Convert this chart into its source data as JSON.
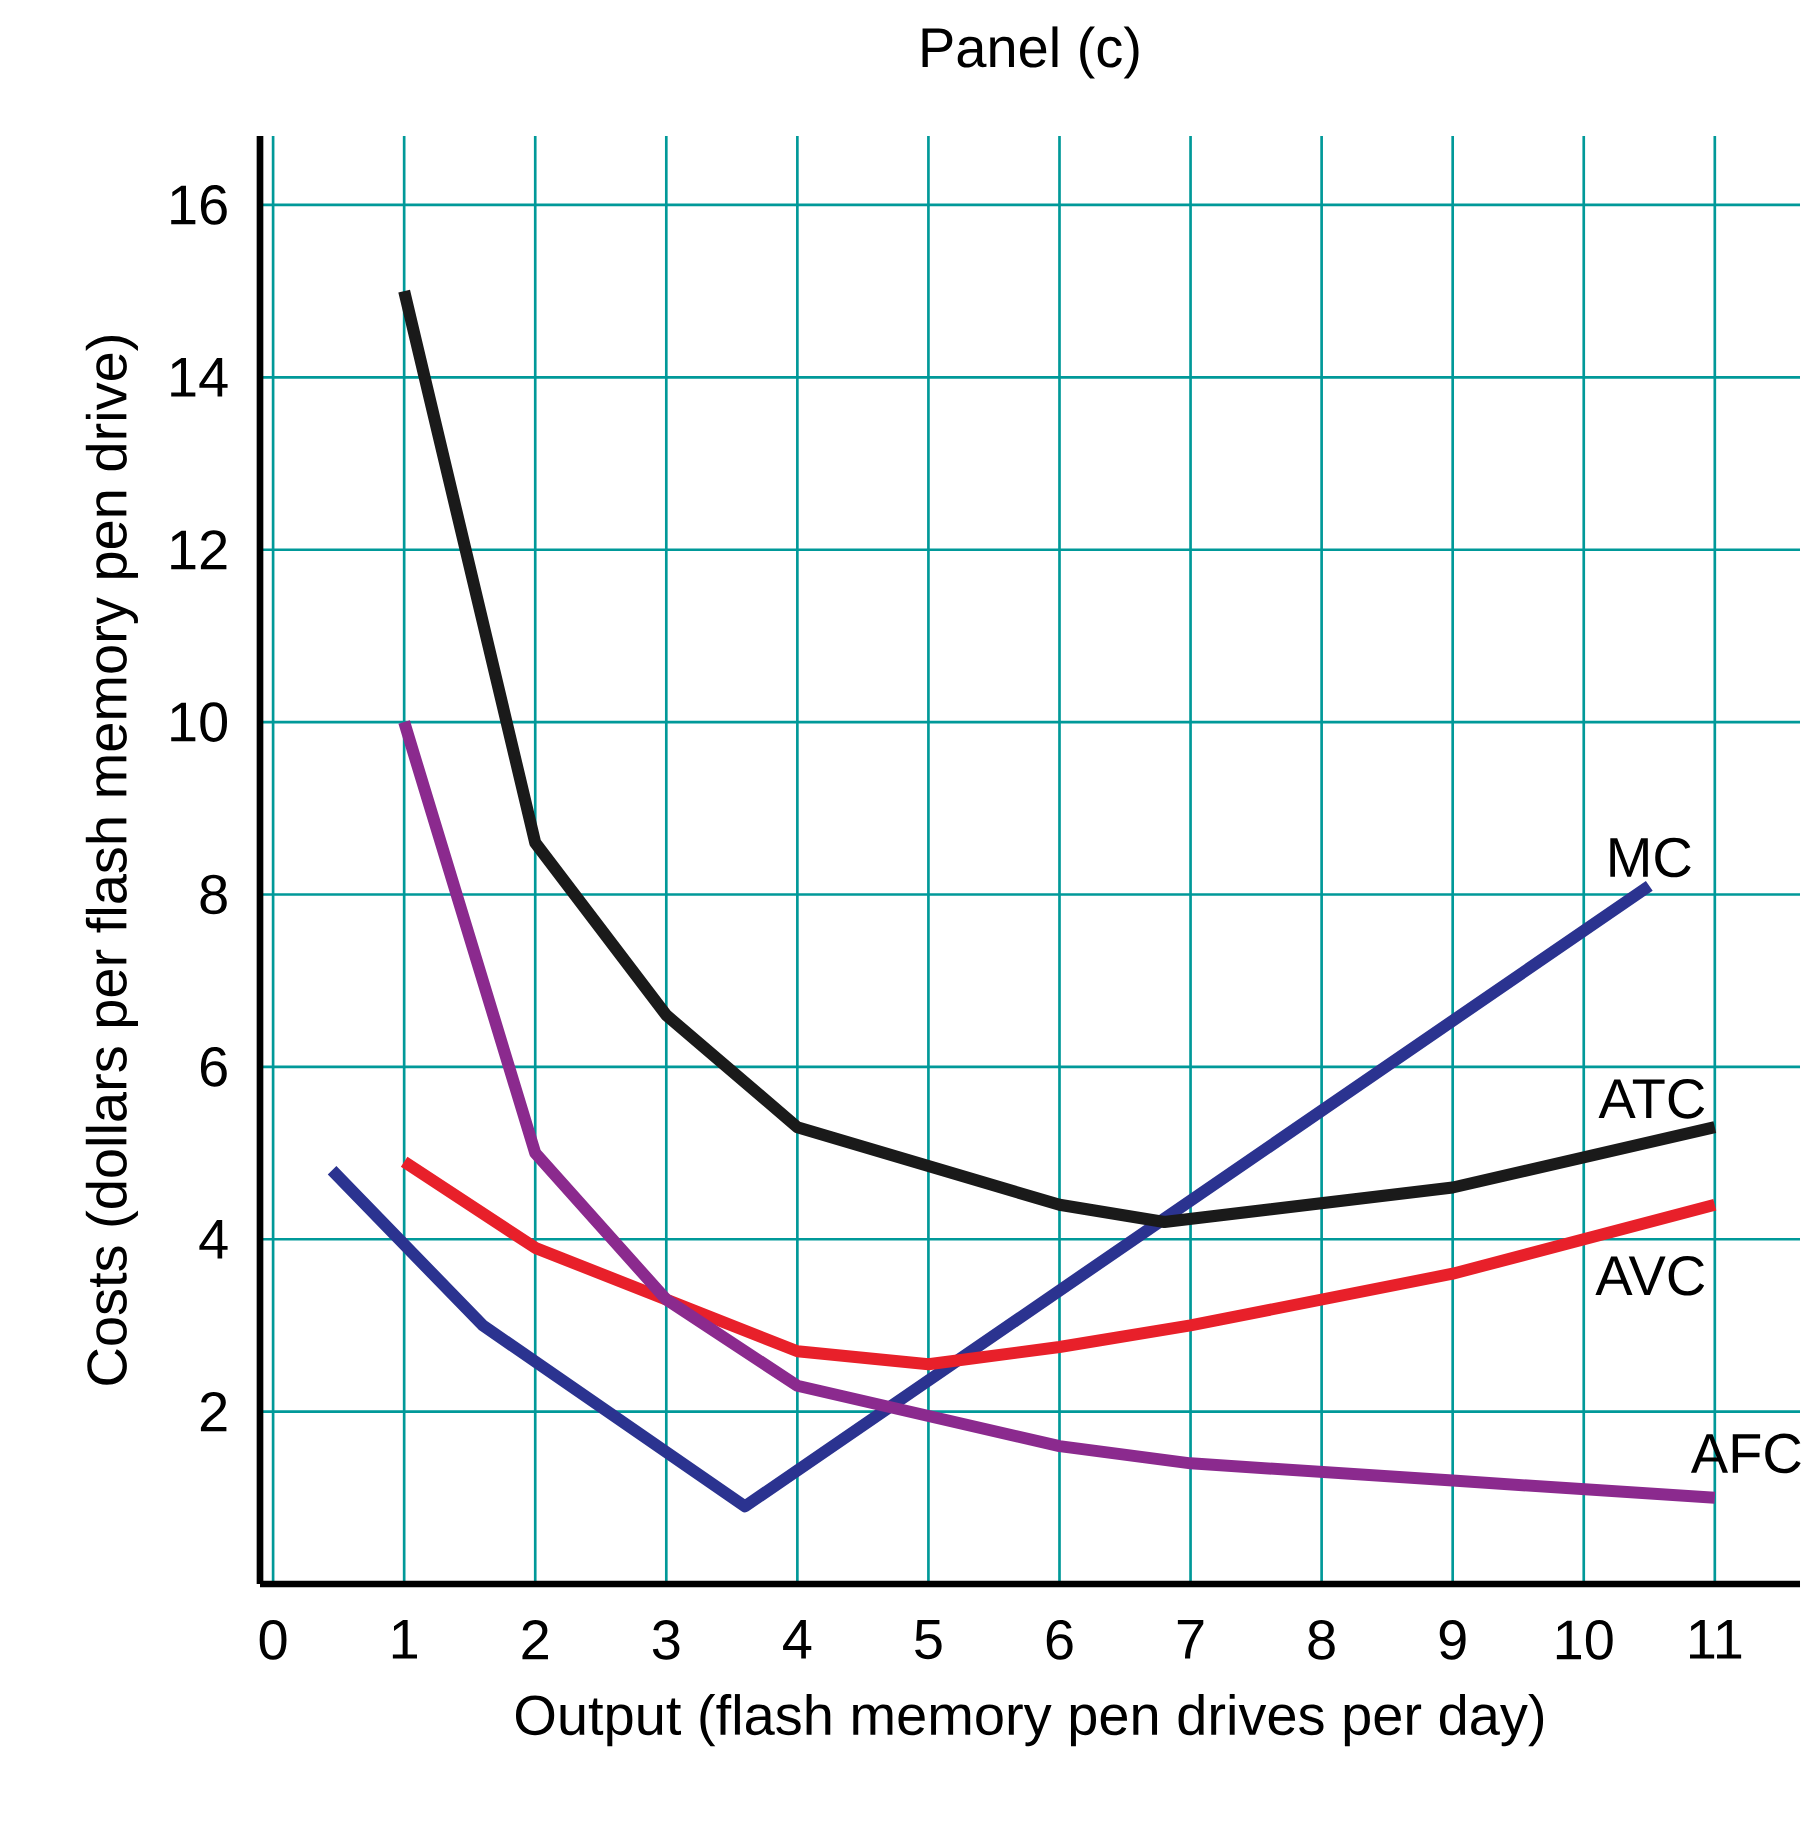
{
  "chart_data": {
    "type": "line",
    "title": "Panel (c)",
    "xlabel": "Output (flash memory pen drives per day)",
    "ylabel": "Costs (dollars per flash memory pen drive)",
    "xlim": [
      -0.1,
      11.65
    ],
    "ylim": [
      0,
      16.8
    ],
    "xticks": [
      0,
      1,
      2,
      3,
      4,
      5,
      6,
      7,
      8,
      9,
      10,
      11
    ],
    "yticks": [
      2,
      4,
      6,
      8,
      10,
      12,
      14,
      16
    ],
    "grid": true,
    "legend": false,
    "series": [
      {
        "name": "MC",
        "color": "#2b3390",
        "x": [
          0.45,
          1.6,
          3.6,
          10.5
        ],
        "values": [
          4.8,
          3.0,
          0.9,
          8.1
        ]
      },
      {
        "name": "ATC",
        "color": "#1a1a1a",
        "x": [
          1,
          2,
          3,
          4,
          6,
          6.8,
          9,
          11
        ],
        "values": [
          15,
          8.6,
          6.6,
          5.3,
          4.4,
          4.2,
          4.6,
          5.3
        ]
      },
      {
        "name": "AVC",
        "color": "#e8202a",
        "x": [
          1,
          2,
          3,
          4,
          5,
          6,
          7,
          9,
          11
        ],
        "values": [
          4.9,
          3.9,
          3.3,
          2.7,
          2.55,
          2.75,
          3.0,
          3.6,
          4.4
        ]
      },
      {
        "name": "AFC",
        "color": "#8b2a8e",
        "x": [
          1,
          2,
          3,
          4,
          6,
          7,
          9,
          11
        ],
        "values": [
          10,
          5,
          3.3,
          2.3,
          1.6,
          1.4,
          1.2,
          1.0
        ]
      }
    ]
  }
}
